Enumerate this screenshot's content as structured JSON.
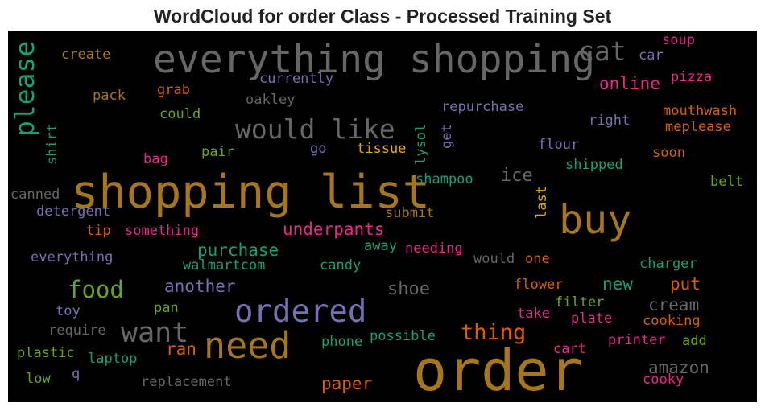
{
  "chart_data": {
    "type": "wordcloud",
    "title": "WordCloud for order Class - Processed Training Set",
    "background": "#000000",
    "words": [
      {
        "text": "everything shopping",
        "color": "#666666"
      },
      {
        "text": "cat",
        "color": "#666666"
      },
      {
        "text": "shopping list",
        "color": "#a6761d"
      },
      {
        "text": "buy",
        "color": "#a6761d"
      },
      {
        "text": "order",
        "color": "#a6761d"
      },
      {
        "text": "need",
        "color": "#a6761d"
      },
      {
        "text": "ordered",
        "color": "#7570b3"
      },
      {
        "text": "want",
        "color": "#666666"
      },
      {
        "text": "would like",
        "color": "#666666"
      },
      {
        "text": "please",
        "color": "#1b9e77"
      },
      {
        "text": "food",
        "color": "#66a61e"
      },
      {
        "text": "thing",
        "color": "#d95f02"
      },
      {
        "text": "online",
        "color": "#e7298a"
      },
      {
        "text": "create",
        "color": "#a6761d"
      },
      {
        "text": "soup",
        "color": "#e7298a"
      },
      {
        "text": "car",
        "color": "#7570b3"
      },
      {
        "text": "pizza",
        "color": "#e7298a"
      },
      {
        "text": "currently",
        "color": "#7570b3"
      },
      {
        "text": "pack",
        "color": "#a6761d"
      },
      {
        "text": "grab",
        "color": "#d95f02"
      },
      {
        "text": "oakley",
        "color": "#666666"
      },
      {
        "text": "repurchase",
        "color": "#7570b3"
      },
      {
        "text": "mouthwash",
        "color": "#d95f02"
      },
      {
        "text": "could",
        "color": "#66a61e"
      },
      {
        "text": "right",
        "color": "#7570b3"
      },
      {
        "text": "meplease",
        "color": "#d95f02"
      },
      {
        "text": "shirt",
        "color": "#1b9e77"
      },
      {
        "text": "get",
        "color": "#7570b3"
      },
      {
        "text": "lysol",
        "color": "#1b9e77"
      },
      {
        "text": "go",
        "color": "#7570b3"
      },
      {
        "text": "tissue",
        "color": "#e6ab02"
      },
      {
        "text": "flour",
        "color": "#7570b3"
      },
      {
        "text": "pair",
        "color": "#66a61e"
      },
      {
        "text": "soon",
        "color": "#d95f02"
      },
      {
        "text": "bag",
        "color": "#e7298a"
      },
      {
        "text": "shipped",
        "color": "#1b9e77"
      },
      {
        "text": "ice",
        "color": "#666666"
      },
      {
        "text": "shampoo",
        "color": "#1b9e77"
      },
      {
        "text": "belt",
        "color": "#66a61e"
      },
      {
        "text": "canned",
        "color": "#666666"
      },
      {
        "text": "last",
        "color": "#e6ab02"
      },
      {
        "text": "detergent",
        "color": "#7570b3"
      },
      {
        "text": "submit",
        "color": "#a6761d"
      },
      {
        "text": "underpants",
        "color": "#e7298a"
      },
      {
        "text": "tip",
        "color": "#d95f02"
      },
      {
        "text": "something",
        "color": "#e7298a"
      },
      {
        "text": "purchase",
        "color": "#1b9e77"
      },
      {
        "text": "away",
        "color": "#1b9e77"
      },
      {
        "text": "needing",
        "color": "#e7298a"
      },
      {
        "text": "everything",
        "color": "#7570b3"
      },
      {
        "text": "walmartcom",
        "color": "#1b9e77"
      },
      {
        "text": "candy",
        "color": "#1b9e77"
      },
      {
        "text": "would",
        "color": "#666666"
      },
      {
        "text": "one",
        "color": "#d95f02"
      },
      {
        "text": "charger",
        "color": "#1b9e77"
      },
      {
        "text": "another",
        "color": "#7570b3"
      },
      {
        "text": "shoe",
        "color": "#666666"
      },
      {
        "text": "new",
        "color": "#1b9e77"
      },
      {
        "text": "put",
        "color": "#d95f02"
      },
      {
        "text": "flower",
        "color": "#d95f02"
      },
      {
        "text": "toy",
        "color": "#7570b3"
      },
      {
        "text": "pan",
        "color": "#66a61e"
      },
      {
        "text": "cream",
        "color": "#666666"
      },
      {
        "text": "filter",
        "color": "#66a61e"
      },
      {
        "text": "take",
        "color": "#e7298a"
      },
      {
        "text": "plate",
        "color": "#e7298a"
      },
      {
        "text": "cooking",
        "color": "#d95f02"
      },
      {
        "text": "require",
        "color": "#666666"
      },
      {
        "text": "possible",
        "color": "#1b9e77"
      },
      {
        "text": "phone",
        "color": "#1b9e77"
      },
      {
        "text": "printer",
        "color": "#e7298a"
      },
      {
        "text": "add",
        "color": "#66a61e"
      },
      {
        "text": "ran",
        "color": "#d95f02"
      },
      {
        "text": "plastic",
        "color": "#66a61e"
      },
      {
        "text": "laptop",
        "color": "#1b9e77"
      },
      {
        "text": "cart",
        "color": "#e7298a"
      },
      {
        "text": "amazon",
        "color": "#666666"
      },
      {
        "text": "paper",
        "color": "#d95f02"
      },
      {
        "text": "q",
        "color": "#7570b3"
      },
      {
        "text": "low",
        "color": "#66a61e"
      },
      {
        "text": "replacement",
        "color": "#666666"
      },
      {
        "text": "cooky",
        "color": "#e7298a"
      }
    ]
  }
}
